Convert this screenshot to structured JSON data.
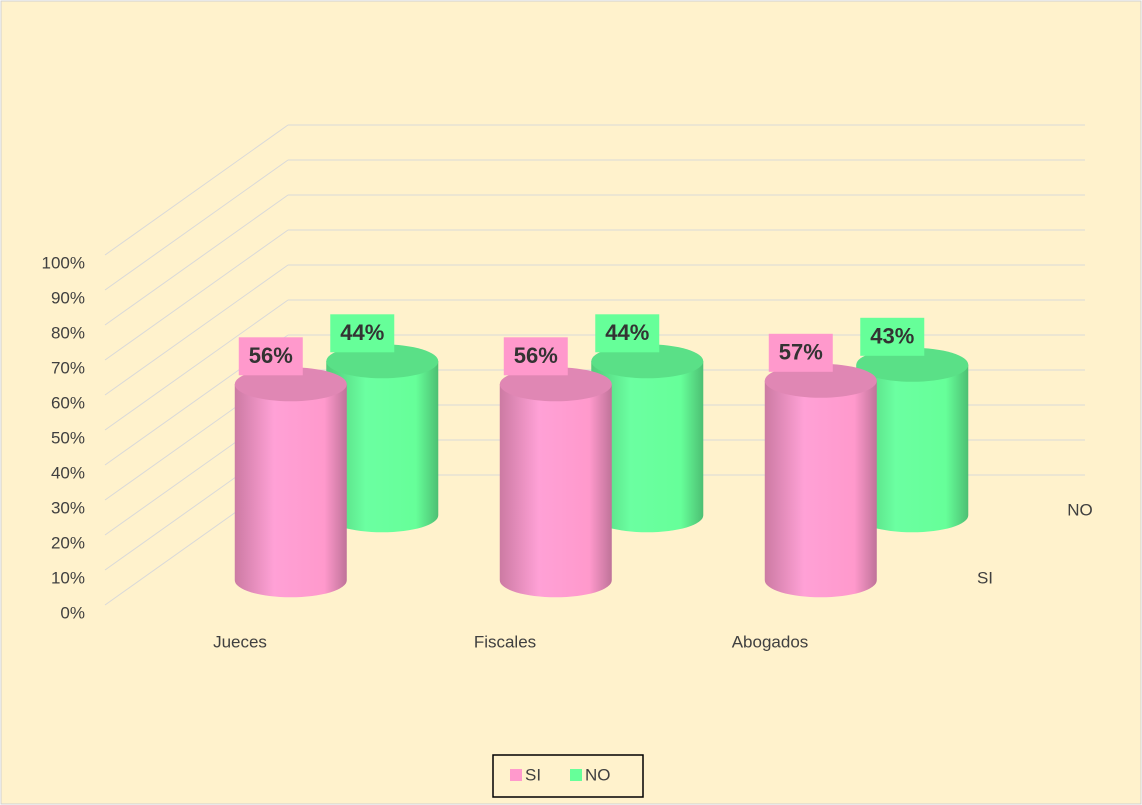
{
  "chart_data": {
    "type": "bar3d",
    "categories": [
      "Jueces",
      "Fiscales",
      "Abogados"
    ],
    "series": [
      {
        "name": "SI",
        "color": "#ff99cc",
        "values": [
          56,
          56,
          57
        ],
        "value_labels": [
          "56%",
          "56%",
          "57%"
        ]
      },
      {
        "name": "NO",
        "color": "#66ff99",
        "values": [
          44,
          44,
          43
        ],
        "value_labels": [
          "44%",
          "44%",
          "43%"
        ]
      }
    ],
    "ylim": [
      0,
      100
    ],
    "yticks": [
      {
        "value": 0,
        "label": "0%"
      },
      {
        "value": 10,
        "label": "10%"
      },
      {
        "value": 20,
        "label": "20%"
      },
      {
        "value": 30,
        "label": "30%"
      },
      {
        "value": 40,
        "label": "40%"
      },
      {
        "value": 50,
        "label": "50%"
      },
      {
        "value": 60,
        "label": "60%"
      },
      {
        "value": 70,
        "label": "70%"
      },
      {
        "value": 80,
        "label": "80%"
      },
      {
        "value": 90,
        "label": "90%"
      },
      {
        "value": 100,
        "label": "100%"
      }
    ],
    "grid": true,
    "legend": "bottom"
  }
}
